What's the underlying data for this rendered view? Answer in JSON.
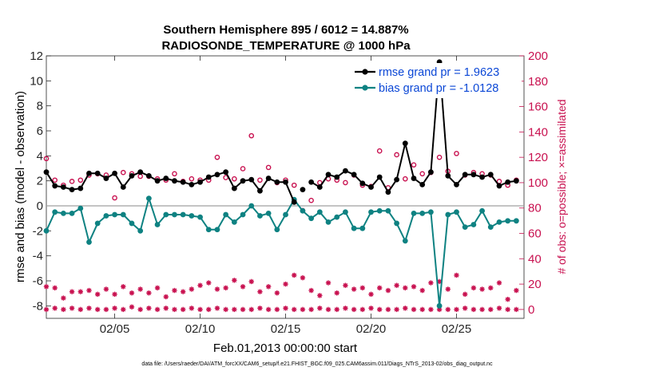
{
  "chart_data": {
    "type": "line",
    "title": "Southern Hemisphere 895 / 6012 = 14.887%",
    "subtitle": "RADIOSONDE_TEMPERATURE @ 1000 hPa",
    "xlabel": "Feb.01,2013 00:00:00 start",
    "ylabel": "rmse and bias (model - observation)",
    "ylabel_right": "# of obs: o=possible; ×=assimilated",
    "xlim": [
      1,
      28.95
    ],
    "ylim": [
      -9,
      12
    ],
    "ylim_right": [
      -7,
      200
    ],
    "x_ticks": [
      5,
      10,
      15,
      20,
      25
    ],
    "x_tick_labels": [
      "02/05",
      "02/10",
      "02/15",
      "02/20",
      "02/25"
    ],
    "y_ticks": [
      -8,
      -6,
      -4,
      -2,
      0,
      2,
      4,
      6,
      8,
      10,
      12
    ],
    "y_tick_labels": [
      "-8",
      "-6",
      "-4",
      "-2",
      "0",
      "2",
      "4",
      "6",
      "8",
      "10",
      "12"
    ],
    "y_ticks_right": [
      0,
      20,
      40,
      60,
      80,
      100,
      120,
      140,
      160,
      180,
      200
    ],
    "y_tick_labels_right": [
      "0",
      "20",
      "40",
      "60",
      "80",
      "100",
      "120",
      "140",
      "160",
      "180",
      "200"
    ],
    "zero_line": 0,
    "grid": false,
    "legend_position": "top-right",
    "footer": "data file: /Users/raeder/DAI/ATM_forcXX/CAM6_setup/f.e21.FHIST_BGC.f09_025.CAM6assim.011/Diags_NTrS_2013-02/obs_diag_output.nc",
    "series": [
      {
        "name": "rmse grand pr = 1.9623",
        "color": "#000000",
        "marker": "dot",
        "x": [
          1.0,
          1.5,
          2.0,
          2.5,
          3.0,
          3.5,
          4.0,
          4.5,
          5.0,
          5.5,
          6.0,
          6.5,
          7.0,
          7.5,
          8.0,
          8.5,
          9.0,
          9.5,
          10.0,
          10.5,
          11.0,
          11.5,
          12.0,
          12.5,
          13.0,
          13.5,
          14.0,
          14.5,
          15.0,
          15.5,
          16.0,
          16.5,
          17.0,
          17.5,
          18.0,
          18.5,
          19.0,
          19.5,
          20.0,
          20.5,
          21.0,
          21.5,
          22.0,
          22.5,
          23.0,
          23.5,
          24.0,
          24.5,
          25.0,
          25.5,
          26.0,
          26.5,
          27.0,
          27.5,
          28.0,
          28.5
        ],
        "values": [
          2.7,
          1.6,
          1.5,
          1.3,
          1.4,
          2.6,
          2.6,
          2.2,
          2.6,
          1.5,
          2.4,
          2.7,
          2.4,
          2.0,
          2.2,
          2.0,
          1.9,
          1.7,
          1.9,
          2.3,
          2.5,
          2.7,
          1.4,
          2.0,
          2.1,
          1.2,
          2.2,
          1.9,
          1.9,
          0.3,
          1.3,
          1.9,
          1.5,
          2.5,
          2.3,
          2.8,
          2.5,
          1.8,
          1.5,
          2.3,
          1.1,
          2.1,
          5.0,
          2.2,
          1.7,
          2.7,
          11.5,
          2.4,
          1.7,
          2.5,
          2.5,
          2.3,
          2.5,
          1.6,
          1.9,
          2.0
        ],
        "gaps_after_index": [
          29,
          30
        ]
      },
      {
        "name": "bias grand pr = -1.0128",
        "color": "#0e8282",
        "marker": "dot",
        "x": [
          1.0,
          1.5,
          2.0,
          2.5,
          3.0,
          3.5,
          4.0,
          4.5,
          5.0,
          5.5,
          6.0,
          6.5,
          7.0,
          7.5,
          8.0,
          8.5,
          9.0,
          9.5,
          10.0,
          10.5,
          11.0,
          11.5,
          12.0,
          12.5,
          13.0,
          13.5,
          14.0,
          14.5,
          15.0,
          15.5,
          16.0,
          16.5,
          17.0,
          17.5,
          18.0,
          18.5,
          19.0,
          19.5,
          20.0,
          20.5,
          21.0,
          21.5,
          22.0,
          22.5,
          23.0,
          23.5,
          24.0,
          24.5,
          25.0,
          25.5,
          26.0,
          26.5,
          27.0,
          27.5,
          28.0,
          28.5
        ],
        "values": [
          -2.0,
          -0.5,
          -0.6,
          -0.6,
          -0.2,
          -2.9,
          -1.4,
          -0.8,
          -0.7,
          -0.7,
          -1.4,
          -2.0,
          0.6,
          -1.5,
          -0.7,
          -0.7,
          -0.7,
          -0.8,
          -0.9,
          -1.9,
          -1.9,
          -0.7,
          -1.3,
          -0.7,
          0.0,
          -0.8,
          -0.6,
          -1.9,
          -0.7,
          0.5,
          -0.4,
          -1.0,
          -0.5,
          -1.3,
          -0.9,
          -0.5,
          -1.8,
          -1.8,
          -0.5,
          -0.4,
          -0.4,
          -1.4,
          -2.8,
          -0.6,
          -0.6,
          -0.5,
          -8.0,
          -0.7,
          -0.5,
          -1.7,
          -1.5,
          -0.4,
          -1.7,
          -1.3,
          -1.2,
          -1.2
        ],
        "gaps_after_index": []
      },
      {
        "name": "# of obs possible",
        "axis": "right",
        "color": "#c8104f",
        "marker": "o",
        "x": [
          1.0,
          1.5,
          2.0,
          2.5,
          3.0,
          3.5,
          4.0,
          4.5,
          5.0,
          5.5,
          6.0,
          6.5,
          7.0,
          7.5,
          8.0,
          8.5,
          9.0,
          9.5,
          10.0,
          10.5,
          11.0,
          11.5,
          12.0,
          12.5,
          13.0,
          13.5,
          14.0,
          14.5,
          15.0,
          15.5,
          16.0,
          16.5,
          17.0,
          17.5,
          18.0,
          18.5,
          19.0,
          19.5,
          20.0,
          20.5,
          21.0,
          21.5,
          22.0,
          22.5,
          23.0,
          23.5,
          24.0,
          24.5,
          25.0,
          25.5,
          26.0,
          26.5,
          27.0,
          27.5,
          28.0,
          28.5
        ],
        "values": [
          119,
          102,
          98,
          101,
          102,
          106,
          107,
          106,
          88,
          108,
          107,
          105,
          105,
          103,
          102,
          107,
          101,
          103,
          102,
          102,
          120,
          104,
          103,
          111,
          137,
          102,
          112,
          100,
          102,
          98,
          78,
          86,
          100,
          103,
          102,
          100,
          106,
          98,
          97,
          125,
          96,
          122,
          103,
          114,
          107,
          108,
          120,
          109,
          123,
          106,
          108,
          107,
          106,
          101,
          98,
          102
        ]
      },
      {
        "name": "# of obs assimilated",
        "axis": "right",
        "color": "#c8104f",
        "marker": "x",
        "x": [
          1.0,
          1.5,
          2.0,
          2.5,
          3.0,
          3.5,
          4.0,
          4.5,
          5.0,
          5.5,
          6.0,
          6.5,
          7.0,
          7.5,
          8.0,
          8.5,
          9.0,
          9.5,
          10.0,
          10.5,
          11.0,
          11.5,
          12.0,
          12.5,
          13.0,
          13.5,
          14.0,
          14.5,
          15.0,
          15.5,
          16.0,
          16.5,
          17.0,
          17.5,
          18.0,
          18.5,
          19.0,
          19.5,
          20.0,
          20.5,
          21.0,
          21.5,
          22.0,
          22.5,
          23.0,
          23.5,
          24.0,
          24.5,
          25.0,
          25.5,
          26.0,
          26.5,
          27.0,
          27.5,
          28.0,
          28.5
        ],
        "values_high": [
          18,
          17,
          9,
          14,
          14,
          15,
          12,
          16,
          12,
          18,
          13,
          16,
          13,
          17,
          10,
          15,
          14,
          16,
          19,
          21,
          16,
          17,
          23,
          18,
          22,
          14,
          18,
          13,
          20,
          27,
          25,
          15,
          11,
          21,
          13,
          19,
          16,
          17,
          12,
          17,
          15,
          19,
          17,
          18,
          15,
          21,
          22,
          16,
          27,
          12,
          17,
          16,
          17,
          21,
          8,
          15
        ],
        "values_low": [
          0,
          1,
          0,
          1,
          0,
          1,
          0,
          0,
          1,
          0,
          2,
          0,
          1,
          0,
          1,
          0,
          0,
          1,
          0,
          0,
          1,
          0,
          0,
          0,
          0,
          1,
          0,
          0,
          1,
          0,
          0,
          0,
          1,
          0,
          0,
          1,
          0,
          0,
          1,
          0,
          0,
          0,
          1,
          0,
          0,
          0,
          0,
          0,
          0,
          1,
          0,
          0,
          0,
          1,
          0,
          0
        ]
      }
    ]
  }
}
